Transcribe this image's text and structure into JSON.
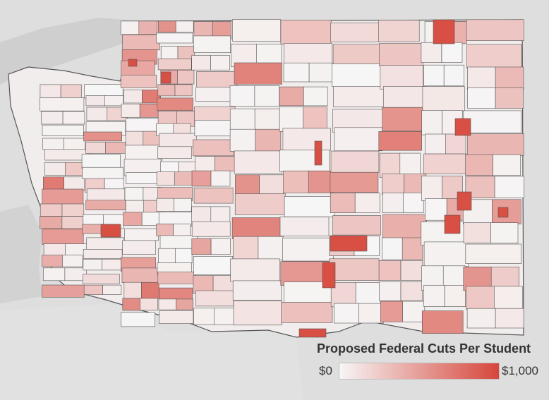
{
  "legend": {
    "title": "Proposed Federal Cuts Per Student",
    "min_label": "$0",
    "max_label": "$1,000",
    "min_value": 0,
    "max_value": 1000
  },
  "colors": {
    "background": "#d9d9d9",
    "land": "#e6e6e6",
    "water": "#cfcfcf",
    "district_border": "#555555",
    "scale_low": "#f6f6f6",
    "scale_high": "#d6463b"
  }
}
